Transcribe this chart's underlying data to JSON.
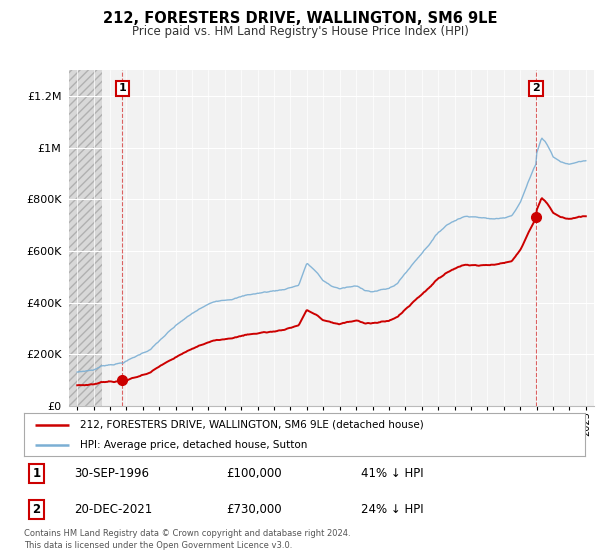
{
  "title": "212, FORESTERS DRIVE, WALLINGTON, SM6 9LE",
  "subtitle": "Price paid vs. HM Land Registry's House Price Index (HPI)",
  "legend_line1": "212, FORESTERS DRIVE, WALLINGTON, SM6 9LE (detached house)",
  "legend_line2": "HPI: Average price, detached house, Sutton",
  "sale1_date": "30-SEP-1996",
  "sale1_price": "£100,000",
  "sale1_hpi": "41% ↓ HPI",
  "sale2_date": "20-DEC-2021",
  "sale2_price": "£730,000",
  "sale2_hpi": "24% ↓ HPI",
  "footnote": "Contains HM Land Registry data © Crown copyright and database right 2024.\nThis data is licensed under the Open Government Licence v3.0.",
  "hpi_color": "#7bafd4",
  "price_color": "#cc0000",
  "sale1_year": 1996.75,
  "sale1_value": 100000,
  "sale2_year": 2021.97,
  "sale2_value": 730000,
  "ylim": [
    0,
    1300000
  ],
  "xlim_start": 1993.5,
  "xlim_end": 2025.5,
  "hatch_end": 1995.5,
  "background_color": "#ffffff",
  "plot_bg_color": "#f2f2f2",
  "hatch_color": "#d8d8d8",
  "grid_color": "#ffffff",
  "yticks": [
    0,
    200000,
    400000,
    600000,
    800000,
    1000000,
    1200000
  ],
  "ylabels": [
    "£0",
    "£200K",
    "£400K",
    "£600K",
    "£800K",
    "£1M",
    "£1.2M"
  ]
}
